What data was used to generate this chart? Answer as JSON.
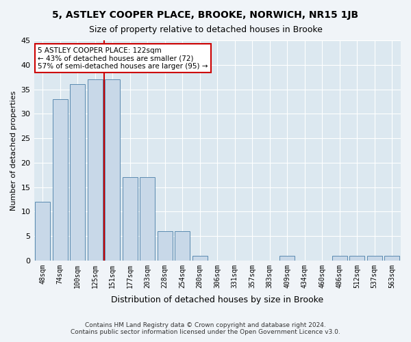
{
  "title1": "5, ASTLEY COOPER PLACE, BROOKE, NORWICH, NR15 1JB",
  "title2": "Size of property relative to detached houses in Brooke",
  "xlabel": "Distribution of detached houses by size in Brooke",
  "ylabel": "Number of detached properties",
  "categories": [
    "48sqm",
    "74sqm",
    "100sqm",
    "125sqm",
    "151sqm",
    "177sqm",
    "203sqm",
    "228sqm",
    "254sqm",
    "280sqm",
    "306sqm",
    "331sqm",
    "357sqm",
    "383sqm",
    "409sqm",
    "434sqm",
    "460sqm",
    "486sqm",
    "512sqm",
    "537sqm",
    "563sqm"
  ],
  "values": [
    12,
    33,
    36,
    37,
    37,
    17,
    17,
    6,
    6,
    1,
    0,
    0,
    0,
    0,
    1,
    0,
    0,
    1,
    1,
    1,
    1
  ],
  "bar_color": "#c8d8e8",
  "bar_edge_color": "#5a8ab0",
  "vline_x": 3.5,
  "vline_color": "#cc0000",
  "ylim": [
    0,
    45
  ],
  "yticks": [
    0,
    5,
    10,
    15,
    20,
    25,
    30,
    35,
    40,
    45
  ],
  "annotation_line1": "5 ASTLEY COOPER PLACE: 122sqm",
  "annotation_line2": "← 43% of detached houses are smaller (72)",
  "annotation_line3": "57% of semi-detached houses are larger (95) →",
  "annotation_box_color": "#ffffff",
  "annotation_box_edge": "#cc0000",
  "footer1": "Contains HM Land Registry data © Crown copyright and database right 2024.",
  "footer2": "Contains public sector information licensed under the Open Government Licence v3.0.",
  "bg_color": "#f0f4f8",
  "plot_bg_color": "#dce8f0"
}
